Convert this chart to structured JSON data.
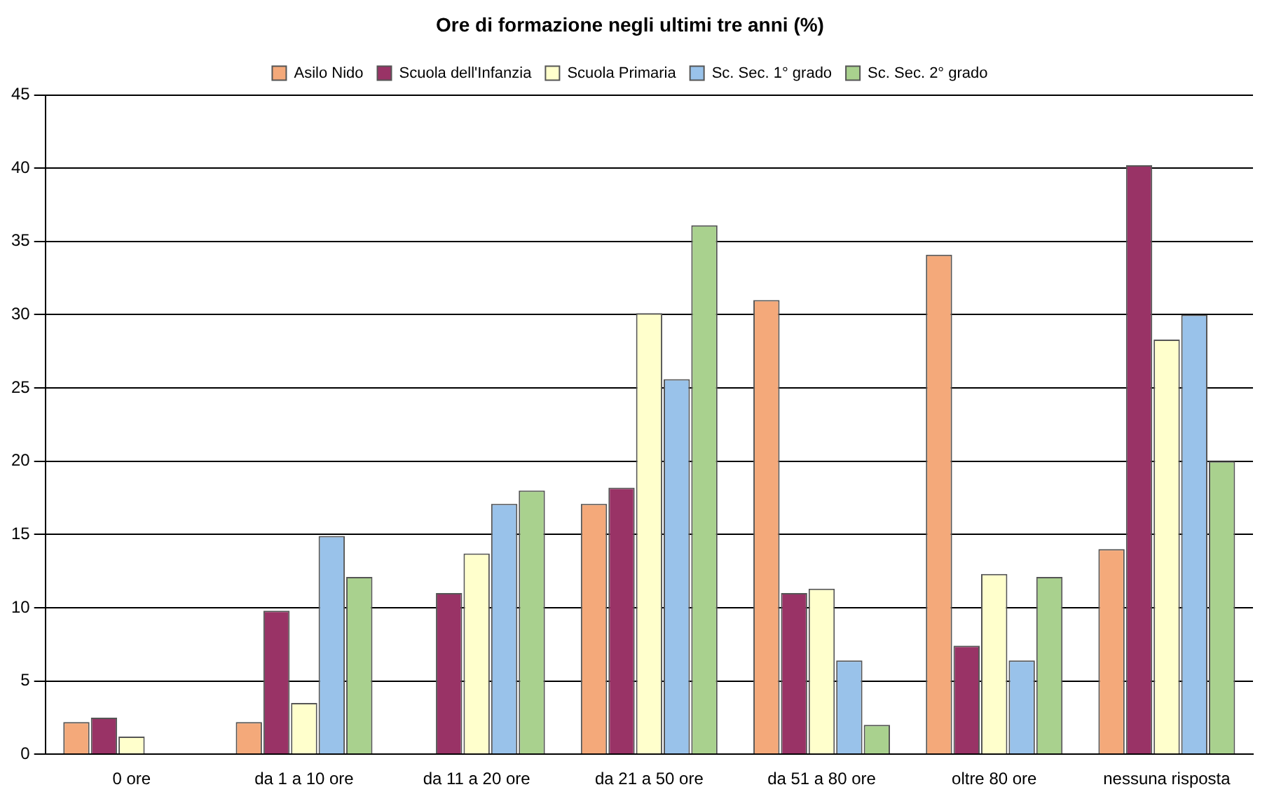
{
  "chart_data": {
    "type": "bar",
    "title": "Ore di formazione negli ultimi tre anni (%)",
    "categories": [
      "0 ore",
      "da 1 a 10 ore",
      "da 11 a 20 ore",
      "da 21 a 50 ore",
      "da 51 a 80 ore",
      "oltre 80 ore",
      "nessuna risposta"
    ],
    "series": [
      {
        "name": "Asilo Nido",
        "color": "#f4a97a",
        "values": [
          2.2,
          2.2,
          0,
          17.1,
          31,
          34.1,
          14
        ]
      },
      {
        "name": "Scuola dell'Infanzia",
        "color": "#993366",
        "values": [
          2.5,
          9.8,
          11,
          18.2,
          11,
          7.4,
          40.2
        ]
      },
      {
        "name": "Scuola Primaria",
        "color": "#ffffcc",
        "values": [
          1.2,
          3.5,
          13.7,
          30.1,
          11.3,
          12.3,
          28.3
        ]
      },
      {
        "name": "Sc. Sec. 1° grado",
        "color": "#99c2ea",
        "values": [
          0,
          14.9,
          17.1,
          25.6,
          6.4,
          6.4,
          30
        ]
      },
      {
        "name": "Sc. Sec. 2° grado",
        "color": "#a9d18e",
        "values": [
          0,
          12.1,
          18,
          36.1,
          2,
          12.1,
          20
        ]
      }
    ],
    "ylim": [
      0,
      45
    ],
    "yticks": [
      0,
      5,
      10,
      15,
      20,
      25,
      30,
      35,
      40,
      45
    ],
    "grid": "y",
    "legend": "top"
  }
}
